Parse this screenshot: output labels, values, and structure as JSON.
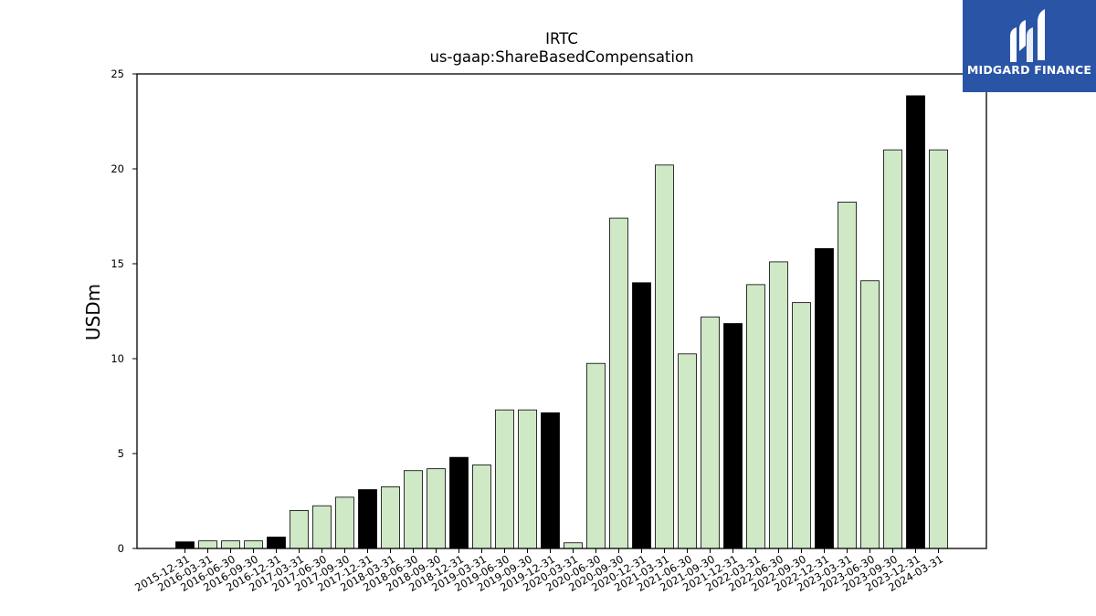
{
  "chart_data": {
    "type": "bar",
    "title": "IRTC",
    "subtitle": "us-gaap:ShareBasedCompensation",
    "xlabel": "",
    "ylabel": "USDm",
    "ylim": [
      0,
      25
    ],
    "yticks": [
      0,
      5,
      10,
      15,
      20,
      25
    ],
    "grid": false,
    "categories": [
      "2015-12-31",
      "2016-03-31",
      "2016-06-30",
      "2016-09-30",
      "2016-12-31",
      "2017-03-31",
      "2017-06-30",
      "2017-09-30",
      "2017-12-31",
      "2018-03-31",
      "2018-06-30",
      "2018-09-30",
      "2018-12-31",
      "2019-03-31",
      "2019-06-30",
      "2019-09-30",
      "2019-12-31",
      "2020-03-31",
      "2020-06-30",
      "2020-09-30",
      "2020-12-31",
      "2021-03-31",
      "2021-06-30",
      "2021-09-30",
      "2021-12-31",
      "2022-03-31",
      "2022-06-30",
      "2022-09-30",
      "2022-12-31",
      "2023-03-31",
      "2023-06-30",
      "2023-09-30",
      "2023-12-31",
      "2024-03-31"
    ],
    "values": [
      0.35,
      0.4,
      0.4,
      0.4,
      0.6,
      2.0,
      2.25,
      2.7,
      3.1,
      3.25,
      4.1,
      4.2,
      4.8,
      4.4,
      7.3,
      7.3,
      7.15,
      0.3,
      9.75,
      17.4,
      14.0,
      20.2,
      10.25,
      12.2,
      11.85,
      13.9,
      15.1,
      12.95,
      15.8,
      18.25,
      14.1,
      21.0,
      23.85,
      21.0
    ],
    "annual": [
      true,
      false,
      false,
      false,
      true,
      false,
      false,
      false,
      true,
      false,
      false,
      false,
      true,
      false,
      false,
      false,
      true,
      false,
      false,
      false,
      true,
      false,
      false,
      false,
      true,
      false,
      false,
      false,
      true,
      false,
      false,
      false,
      true,
      false
    ],
    "colors": {
      "annual": "#000000",
      "quarterly": "#cfe8c6",
      "edge": "#000000"
    }
  },
  "logo": {
    "text": "MIDGARD FINANCE",
    "background": "#2a55a6"
  }
}
